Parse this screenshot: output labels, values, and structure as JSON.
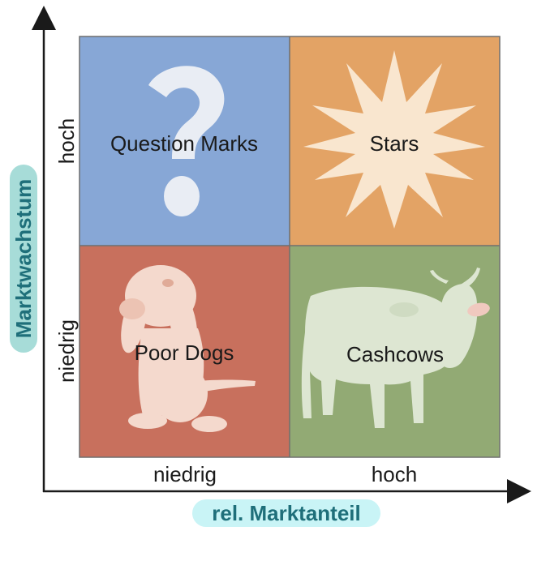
{
  "quadrants": {
    "top_left": {
      "label": "Question Marks",
      "color": "#87a7d6",
      "icon": "question-mark-icon"
    },
    "top_right": {
      "label": "Stars",
      "color": "#e3a365",
      "icon": "star-burst-icon"
    },
    "bottom_left": {
      "label": "Poor Dogs",
      "color": "#c8705d",
      "icon": "dog-icon"
    },
    "bottom_right": {
      "label": "Cashcows",
      "color": "#92aa74",
      "icon": "cow-icon"
    }
  },
  "y_axis": {
    "title": "Marktwachstum",
    "high": "hoch",
    "low": "niedrig",
    "title_bg": "#a7dcd8"
  },
  "x_axis": {
    "title": "rel. Marktanteil",
    "low": "niedrig",
    "high": "hoch",
    "title_bg": "#c9f4f6"
  },
  "colors": {
    "axis": "#1a1a1a",
    "grid_line": "#7a7a7a",
    "icon_light": "#eef1f5",
    "star_fill": "#f9e6cf",
    "dog_fill": "#f4d9cd",
    "cow_fill": "#dde6d2"
  }
}
